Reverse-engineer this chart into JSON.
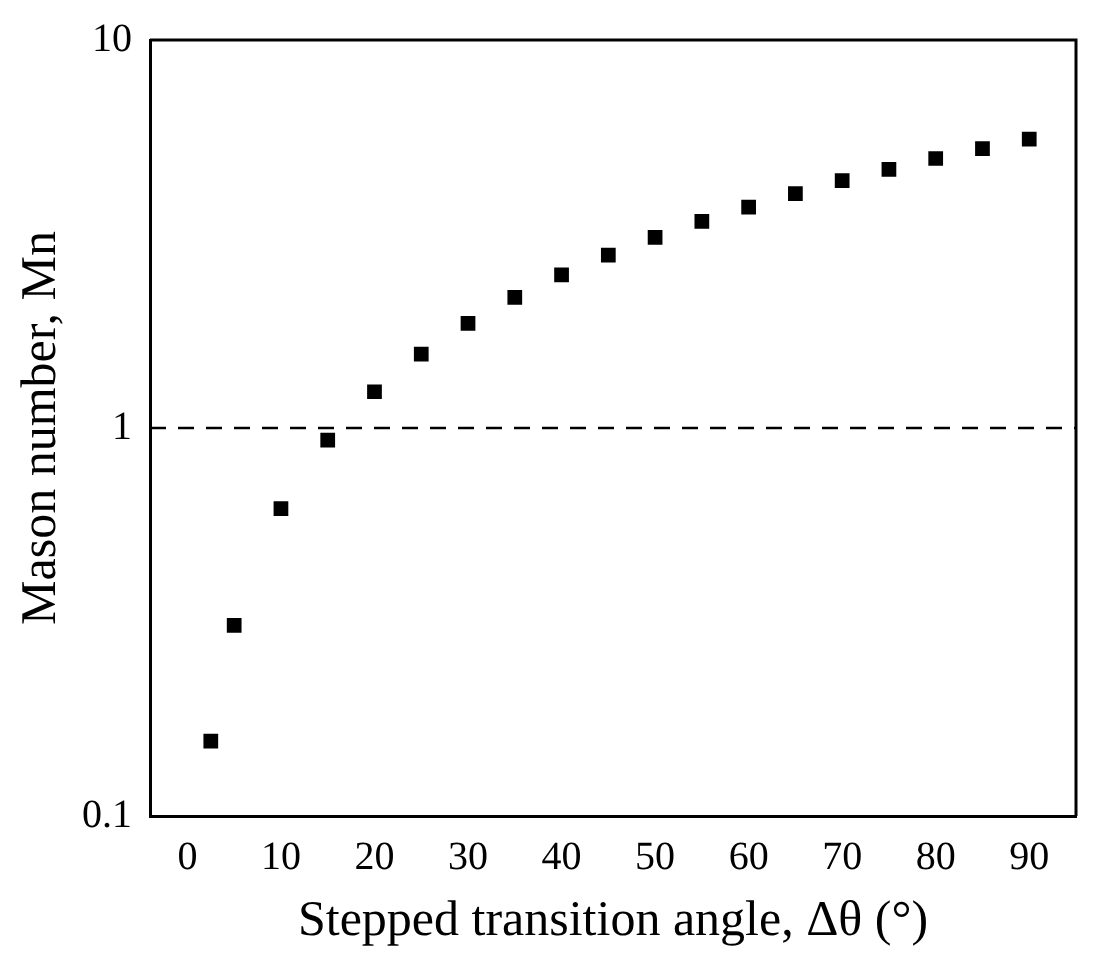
{
  "chart_data": {
    "type": "scatter",
    "xlabel": "Stepped transition angle, Δθ (°)",
    "ylabel": "Mason number, Mn",
    "x": [
      2.5,
      5,
      10,
      15,
      20,
      25,
      30,
      35,
      40,
      45,
      50,
      55,
      60,
      65,
      70,
      75,
      80,
      85,
      90
    ],
    "series": [
      {
        "color": "#000000",
        "values": [
          0.156,
          0.31,
          0.62,
          0.93,
          1.24,
          1.55,
          1.86,
          2.17,
          2.48,
          2.79,
          3.1,
          3.41,
          3.71,
          4.02,
          4.34,
          4.64,
          4.95,
          5.25,
          5.55
        ]
      }
    ],
    "xlim": [
      -4,
      95
    ],
    "xticks": [
      0,
      10,
      20,
      30,
      40,
      50,
      60,
      70,
      80,
      90
    ],
    "ylim": [
      0.1,
      10
    ],
    "yticks": [
      0.1,
      1,
      10
    ],
    "log": "y",
    "grid": false,
    "legend": false,
    "marker": "square",
    "ref_lines": [
      {
        "axis": "y",
        "value": 1,
        "color": "#000000",
        "line_style": "dashed"
      }
    ]
  }
}
